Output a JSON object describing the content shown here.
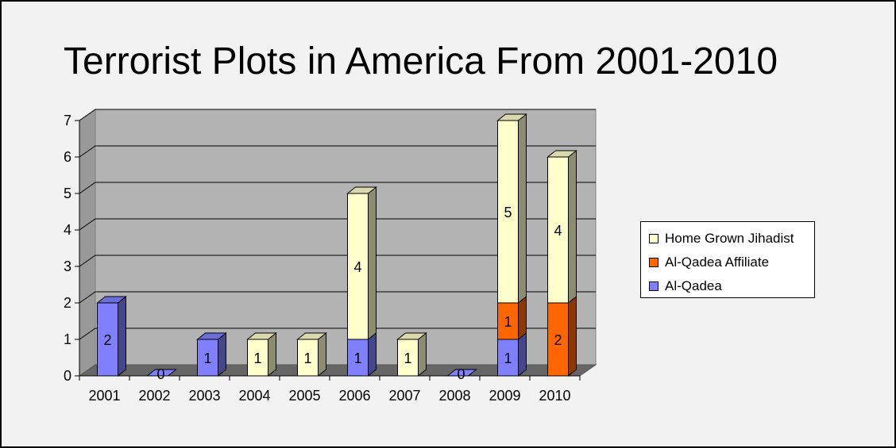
{
  "chart_data": {
    "type": "bar",
    "stacked": true,
    "three_d": true,
    "title": "Terrorist Plots in America From 2001-2010",
    "xlabel": "",
    "ylabel": "",
    "categories": [
      "2001",
      "2002",
      "2003",
      "2004",
      "2005",
      "2006",
      "2007",
      "2008",
      "2009",
      "2010"
    ],
    "ylim": [
      0,
      7
    ],
    "yticks": [
      "0",
      "1",
      "2",
      "3",
      "4",
      "5",
      "6",
      "7"
    ],
    "grid": true,
    "legend_position": "right",
    "series": [
      {
        "name": "Al-Qadea",
        "color": "#8080ff",
        "values": [
          2,
          0,
          1,
          0,
          0,
          1,
          0,
          0,
          1,
          0
        ]
      },
      {
        "name": "Al-Qadea Affiliate",
        "color": "#ff6600",
        "values": [
          0,
          0,
          0,
          0,
          0,
          0,
          0,
          0,
          1,
          2
        ]
      },
      {
        "name": "Home Grown Jihadist",
        "color": "#ffffcc",
        "values": [
          0,
          0,
          0,
          1,
          1,
          4,
          1,
          0,
          5,
          4
        ]
      }
    ],
    "zero_labels": [
      "2002",
      "2008"
    ],
    "legend_order": [
      "Home Grown Jihadist",
      "Al-Qadea Affiliate",
      "Al-Qadea"
    ]
  }
}
